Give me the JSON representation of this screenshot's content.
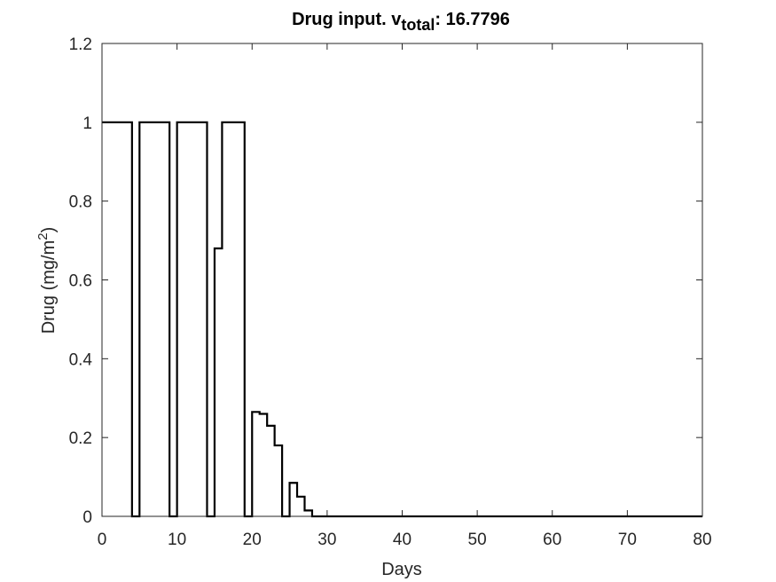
{
  "chart_data": {
    "type": "line",
    "title": {
      "prefix": "Drug input. v",
      "subscript": "total",
      "suffix": ": 16.7796"
    },
    "xlabel": "Days",
    "ylabel": {
      "main": "Drug (mg/m",
      "superscript": "2",
      "close": ")"
    },
    "xlim": [
      0,
      80
    ],
    "ylim": [
      0,
      1.2
    ],
    "xticks": [
      0,
      10,
      20,
      30,
      40,
      50,
      60,
      70,
      80
    ],
    "yticks": [
      0,
      0.2,
      0.4,
      0.6,
      0.8,
      1,
      1.2
    ],
    "xtick_labels": [
      "0",
      "10",
      "20",
      "30",
      "40",
      "50",
      "60",
      "70",
      "80"
    ],
    "ytick_labels": [
      "0",
      "0.2",
      "0.4",
      "0.6",
      "0.8",
      "1",
      "1.2"
    ],
    "grid": false,
    "step": "post",
    "series": [
      {
        "color": "#000000",
        "x": [
          0,
          1,
          2,
          3,
          4,
          5,
          6,
          7,
          8,
          9,
          10,
          11,
          12,
          13,
          14,
          15,
          16,
          17,
          18,
          19,
          20,
          21,
          22,
          23,
          24,
          25,
          26,
          27,
          28,
          29,
          30,
          31,
          32,
          33,
          34,
          35,
          36,
          37,
          38,
          39,
          40,
          41,
          42,
          43,
          44,
          45,
          46,
          47,
          48,
          49,
          50,
          51,
          52,
          53,
          54,
          55,
          56,
          57,
          58,
          59,
          60,
          61,
          62,
          63,
          64,
          65,
          66,
          67,
          68,
          69,
          70,
          71,
          72,
          73,
          74,
          75,
          76,
          77,
          78,
          79,
          80
        ],
        "y": [
          1,
          1,
          1,
          1,
          0,
          1,
          1,
          1,
          1,
          0,
          1,
          1,
          1,
          1,
          0,
          0.68,
          1,
          1,
          1,
          0,
          0.265,
          0.26,
          0.23,
          0.18,
          0,
          0.085,
          0.05,
          0.015,
          0,
          0,
          0,
          0,
          0,
          0,
          0,
          0,
          0,
          0,
          0,
          0,
          0,
          0,
          0,
          0,
          0,
          0,
          0,
          0,
          0,
          0,
          0,
          0,
          0,
          0,
          0,
          0,
          0,
          0,
          0,
          0,
          0,
          0,
          0,
          0,
          0,
          0,
          0,
          0,
          0,
          0,
          0,
          0,
          0,
          0,
          0,
          0,
          0,
          0,
          0,
          0,
          0
        ]
      }
    ]
  }
}
